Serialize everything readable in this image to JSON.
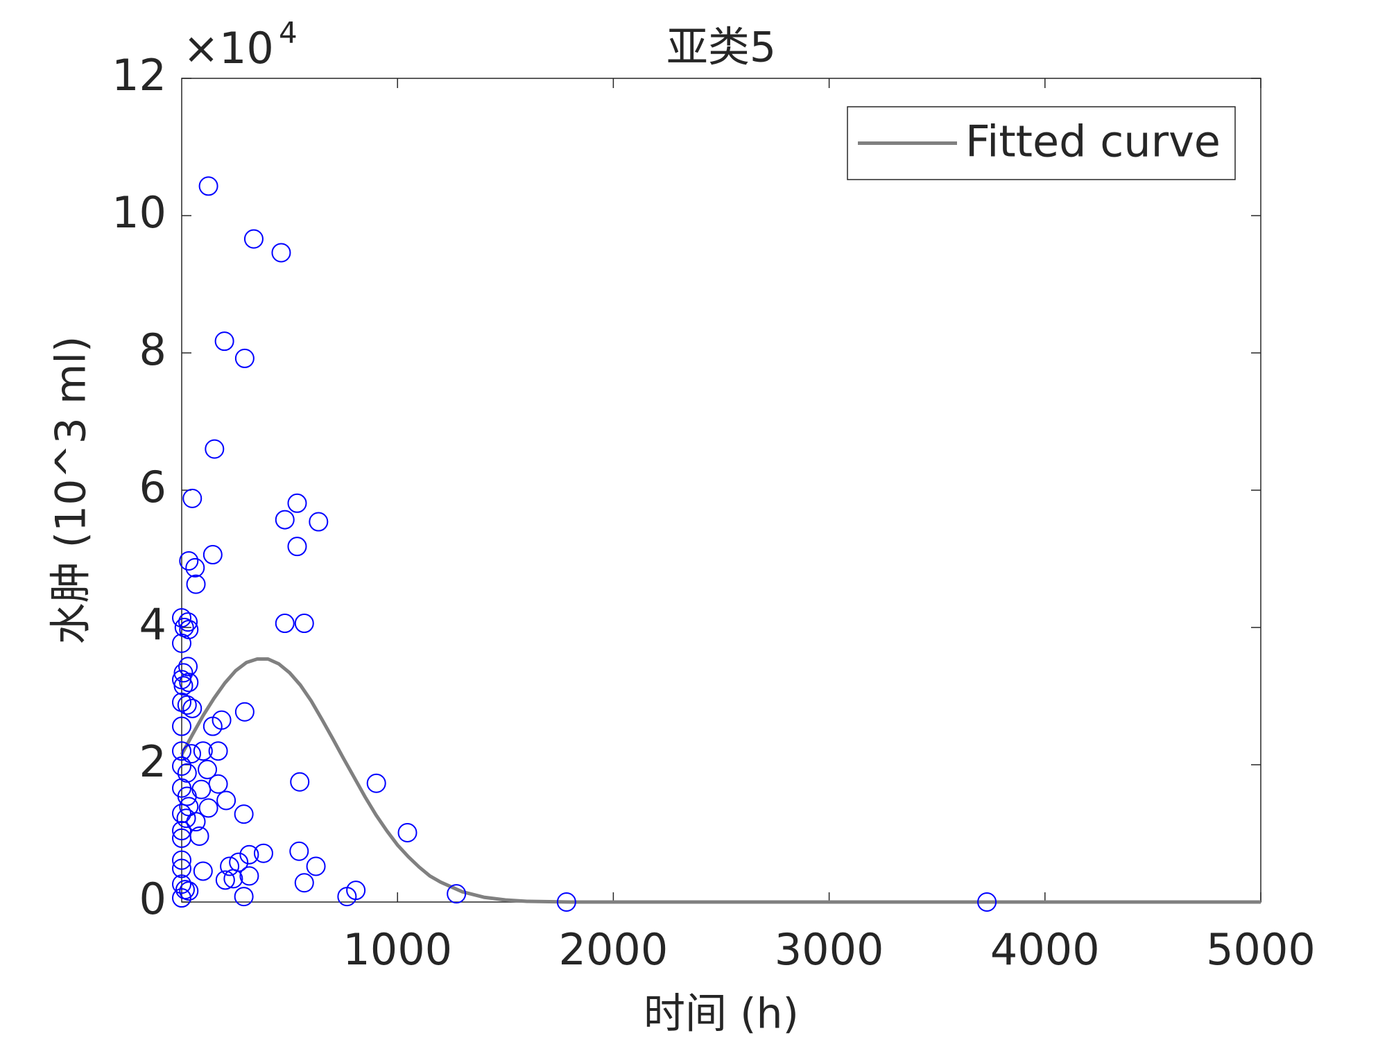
{
  "chart_data": {
    "type": "scatter",
    "title": "亚类5",
    "xlabel": "时间 (h)",
    "ylabel": "水肿 (10^3 ml)",
    "y_exponent": {
      "base": "×10",
      "power": "4"
    },
    "xlim": [
      0,
      5000
    ],
    "xticks": [
      1000,
      2000,
      3000,
      4000,
      5000
    ],
    "ylim": [
      0,
      12
    ],
    "yticks": [
      0,
      2,
      4,
      6,
      8,
      10,
      12
    ],
    "legend": "northeast",
    "points": {
      "color": "#0000ff",
      "x": [
        124,
        334,
        461,
        198,
        292,
        152,
        49,
        535,
        478,
        634,
        535,
        144,
        33,
        62,
        66,
        478,
        568,
        0,
        29,
        12,
        33,
        0,
        29,
        8,
        0,
        33,
        8,
        0,
        25,
        49,
        292,
        185,
        144,
        0,
        99,
        169,
        0,
        45,
        119,
        0,
        25,
        169,
        547,
        902,
        0,
        91,
        25,
        206,
        124,
        33,
        0,
        288,
        21,
        66,
        0,
        82,
        1046,
        0,
        544,
        379,
        313,
        264,
        0,
        622,
        222,
        99,
        0,
        313,
        239,
        202,
        568,
        0,
        16,
        807,
        33,
        288,
        766,
        1273,
        0,
        1783,
        3731
      ],
      "y": [
        10.43,
        9.66,
        9.46,
        8.17,
        7.92,
        6.6,
        5.88,
        5.81,
        5.57,
        5.54,
        5.18,
        5.06,
        4.97,
        4.87,
        4.63,
        4.06,
        4.06,
        4.14,
        4.08,
        4.0,
        3.97,
        3.77,
        3.43,
        3.34,
        3.24,
        3.2,
        3.15,
        2.91,
        2.87,
        2.82,
        2.77,
        2.65,
        2.56,
        2.56,
        2.2,
        2.2,
        2.2,
        2.16,
        1.93,
        1.98,
        1.88,
        1.72,
        1.75,
        1.73,
        1.66,
        1.64,
        1.54,
        1.48,
        1.37,
        1.39,
        1.29,
        1.28,
        1.22,
        1.17,
        1.04,
        0.96,
        1.01,
        0.93,
        0.74,
        0.71,
        0.69,
        0.58,
        0.61,
        0.52,
        0.52,
        0.45,
        0.49,
        0.38,
        0.34,
        0.32,
        0.28,
        0.26,
        0.18,
        0.17,
        0.16,
        0.08,
        0.08,
        0.12,
        0.06,
        0.0,
        0.0
      ]
    },
    "fit": {
      "name": "Fitted curve",
      "color": "#808080",
      "x": [
        0,
        50,
        100,
        150,
        200,
        250,
        300,
        350,
        400,
        450,
        500,
        550,
        600,
        650,
        700,
        750,
        800,
        850,
        900,
        950,
        1000,
        1050,
        1100,
        1150,
        1200,
        1300,
        1400,
        1500,
        1600,
        1800,
        5000
      ],
      "y": [
        2.15,
        2.44,
        2.72,
        2.97,
        3.19,
        3.37,
        3.49,
        3.54,
        3.54,
        3.47,
        3.34,
        3.16,
        2.93,
        2.66,
        2.38,
        2.09,
        1.81,
        1.53,
        1.27,
        1.04,
        0.83,
        0.66,
        0.51,
        0.38,
        0.29,
        0.15,
        0.07,
        0.03,
        0.01,
        0,
        0
      ]
    }
  }
}
